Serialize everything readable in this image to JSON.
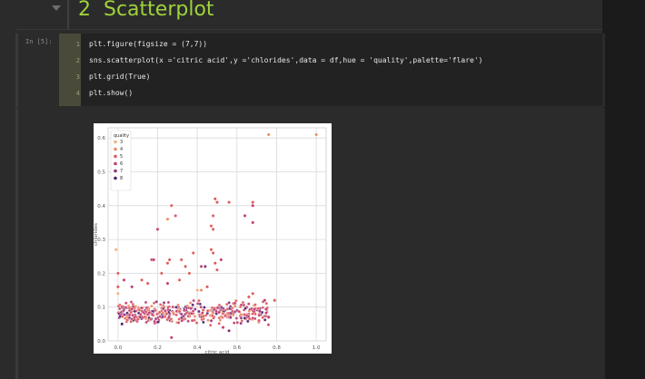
{
  "heading": {
    "number": "2",
    "title": "Scatterplot"
  },
  "code_cell": {
    "prompt": "In [5]:",
    "lines": [
      {
        "no": "1",
        "text": "plt.figure(figsize = (7,7))"
      },
      {
        "no": "2",
        "text": "sns.scatterplot(x ='citric acid',y ='chlorides',data = df,hue = 'quality',palette='flare')"
      },
      {
        "no": "3",
        "text": "plt.grid(True)"
      },
      {
        "no": "4",
        "text": "plt.show()"
      }
    ]
  },
  "chart_data": {
    "type": "scatter",
    "xlabel": "citric acid",
    "ylabel": "chlorides",
    "xlim": [
      -0.05,
      1.05
    ],
    "ylim": [
      -0.0,
      0.63
    ],
    "xticks": [
      "0.0",
      "0.2",
      "0.4",
      "0.6",
      "0.8",
      "1.0"
    ],
    "yticks": [
      "0.0",
      "0.1",
      "0.2",
      "0.3",
      "0.4",
      "0.5",
      "0.6"
    ],
    "grid": true,
    "legend": {
      "title": "quality",
      "placement": "top-left",
      "entries": [
        {
          "label": "3",
          "color": "#f0b37c"
        },
        {
          "label": "4",
          "color": "#ea8a63"
        },
        {
          "label": "5",
          "color": "#dd5a59"
        },
        {
          "label": "6",
          "color": "#c13d6a"
        },
        {
          "label": "7",
          "color": "#8b2f7b"
        },
        {
          "label": "8",
          "color": "#4f1e70"
        }
      ]
    },
    "points": [
      {
        "x": 0.76,
        "y": 0.61,
        "q": "4"
      },
      {
        "x": 1.0,
        "y": 0.61,
        "q": "4"
      },
      {
        "x": 0.49,
        "y": 0.42,
        "q": "5"
      },
      {
        "x": 0.5,
        "y": 0.41,
        "q": "5"
      },
      {
        "x": 0.56,
        "y": 0.41,
        "q": "5"
      },
      {
        "x": 0.68,
        "y": 0.41,
        "q": "5"
      },
      {
        "x": 0.68,
        "y": 0.4,
        "q": "6"
      },
      {
        "x": 0.27,
        "y": 0.4,
        "q": "5"
      },
      {
        "x": 0.29,
        "y": 0.37,
        "q": "5"
      },
      {
        "x": 0.25,
        "y": 0.36,
        "q": "4"
      },
      {
        "x": 0.48,
        "y": 0.37,
        "q": "5"
      },
      {
        "x": 0.64,
        "y": 0.37,
        "q": "6"
      },
      {
        "x": 0.68,
        "y": 0.35,
        "q": "6"
      },
      {
        "x": 0.47,
        "y": 0.34,
        "q": "5"
      },
      {
        "x": 0.48,
        "y": 0.33,
        "q": "5"
      },
      {
        "x": 0.2,
        "y": 0.33,
        "q": "6"
      },
      {
        "x": -0.01,
        "y": 0.27,
        "q": "3"
      },
      {
        "x": 0.47,
        "y": 0.27,
        "q": "5"
      },
      {
        "x": 0.38,
        "y": 0.26,
        "q": "5"
      },
      {
        "x": 0.48,
        "y": 0.26,
        "q": "5"
      },
      {
        "x": 0.17,
        "y": 0.24,
        "q": "6"
      },
      {
        "x": 0.18,
        "y": 0.24,
        "q": "6"
      },
      {
        "x": 0.26,
        "y": 0.24,
        "q": "5"
      },
      {
        "x": 0.32,
        "y": 0.24,
        "q": "5"
      },
      {
        "x": 0.52,
        "y": 0.24,
        "q": "6"
      },
      {
        "x": 0.42,
        "y": 0.22,
        "q": "6"
      },
      {
        "x": 0.44,
        "y": 0.22,
        "q": "7"
      },
      {
        "x": 0.34,
        "y": 0.22,
        "q": "5"
      },
      {
        "x": 0.25,
        "y": 0.23,
        "q": "5"
      },
      {
        "x": 0.49,
        "y": 0.23,
        "q": "5"
      },
      {
        "x": 0.5,
        "y": 0.21,
        "q": "5"
      },
      {
        "x": 0.0,
        "y": 0.2,
        "q": "5"
      },
      {
        "x": 0.22,
        "y": 0.2,
        "q": "5"
      },
      {
        "x": 0.36,
        "y": 0.2,
        "q": "5"
      },
      {
        "x": 0.03,
        "y": 0.18,
        "q": "6"
      },
      {
        "x": 0.12,
        "y": 0.18,
        "q": "5"
      },
      {
        "x": 0.31,
        "y": 0.18,
        "q": "5"
      },
      {
        "x": 0.45,
        "y": 0.16,
        "q": "5"
      },
      {
        "x": 0.15,
        "y": 0.17,
        "q": "5"
      },
      {
        "x": 0.0,
        "y": 0.16,
        "q": "5"
      },
      {
        "x": 0.07,
        "y": 0.16,
        "q": "6"
      },
      {
        "x": 0.25,
        "y": 0.17,
        "q": "6"
      },
      {
        "x": 0.4,
        "y": 0.15,
        "q": "3"
      },
      {
        "x": 0.42,
        "y": 0.15,
        "q": "4"
      },
      {
        "x": 0.0,
        "y": 0.14,
        "q": "3"
      },
      {
        "x": 0.68,
        "y": 0.14,
        "q": "5"
      },
      {
        "x": 0.74,
        "y": 0.12,
        "q": "6"
      },
      {
        "x": 0.79,
        "y": 0.12,
        "q": "5"
      },
      {
        "x": 0.66,
        "y": 0.13,
        "q": "5"
      },
      {
        "x": 0.27,
        "y": 0.01,
        "q": "6"
      },
      {
        "x": 0.53,
        "y": 0.04,
        "q": "6"
      },
      {
        "x": 0.56,
        "y": 0.03,
        "q": "7"
      },
      {
        "x": 0.02,
        "y": 0.05,
        "q": "8"
      },
      {
        "x": 0.76,
        "y": 0.07,
        "q": "6"
      }
    ],
    "cluster": {
      "note_for_script": "dense band",
      "x_range": [
        0.0,
        0.76
      ],
      "y_range": [
        0.04,
        0.13
      ]
    }
  }
}
